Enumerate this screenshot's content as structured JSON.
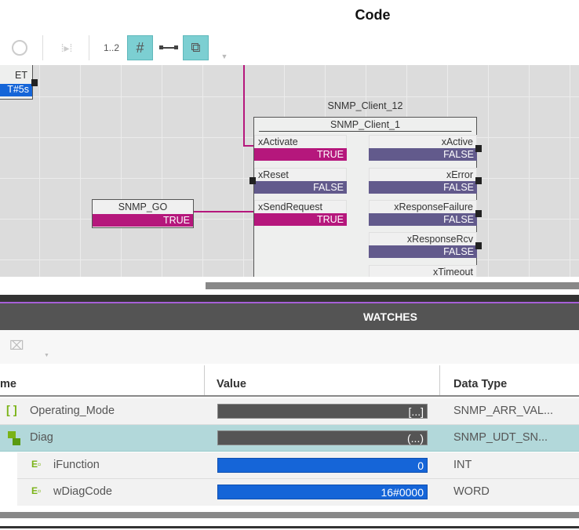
{
  "header": {
    "title": "Code"
  },
  "toolbar": {
    "numbering_label": "1..2",
    "icons": [
      "circle-icon",
      "step-icon",
      "grid-icon",
      "connector-icon",
      "eraser-icon",
      "dropdown-icon"
    ]
  },
  "canvas": {
    "et_block": {
      "pin": "ET",
      "value": "T#5s"
    },
    "snmp_go": {
      "name": "SNMP_GO",
      "value": "TRUE"
    },
    "fb": {
      "instance": "SNMP_Client_12",
      "type": "SNMP_Client_1",
      "inputs": [
        {
          "name": "xActivate",
          "value": "TRUE"
        },
        {
          "name": "xReset",
          "value": "FALSE"
        },
        {
          "name": "xSendRequest",
          "value": "TRUE"
        }
      ],
      "outputs": [
        {
          "name": "xActive",
          "value": "FALSE"
        },
        {
          "name": "xError",
          "value": "FALSE"
        },
        {
          "name": "xResponseFailure",
          "value": "FALSE"
        },
        {
          "name": "xResponseRcv",
          "value": "FALSE"
        },
        {
          "name": "xTimeout",
          "value": ""
        }
      ]
    }
  },
  "watches": {
    "title": "WATCHES",
    "columns": {
      "name": "me",
      "value": "Value",
      "type": "Data Type"
    },
    "rows": [
      {
        "name": "Operating_Mode",
        "value": "[...]",
        "type": "SNMP_ARR_VAL...",
        "icon": "array-icon"
      },
      {
        "name": "Diag",
        "value": "(...)",
        "type": "SNMP_UDT_SN...",
        "icon": "struct-icon",
        "selected": true
      },
      {
        "name": "iFunction",
        "value": "0",
        "type": "INT",
        "icon": "element-icon"
      },
      {
        "name": "wDiagCode",
        "value": "16#0000",
        "type": "WORD",
        "icon": "element-icon"
      }
    ]
  },
  "colors": {
    "true": "#b5177c",
    "false": "#625a8c",
    "accent": "#7ccfd2",
    "selected_row": "#b2d8da",
    "value_blue": "#1565d8"
  }
}
